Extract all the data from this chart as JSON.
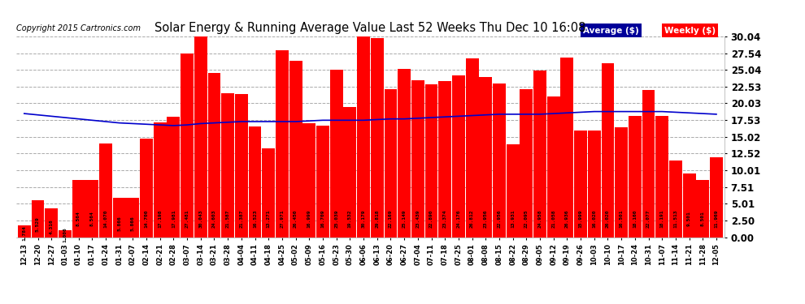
{
  "title": "Solar Energy & Running Average Value Last 52 Weeks Thu Dec 10 16:08",
  "copyright": "Copyright 2015 Cartronics.com",
  "bar_color": "#FF0000",
  "avg_line_color": "#0000CC",
  "background_color": "#FFFFFF",
  "plot_bg_color": "#FFFFFF",
  "yticks": [
    0.0,
    2.5,
    5.01,
    7.51,
    10.01,
    12.52,
    15.02,
    17.53,
    20.03,
    22.53,
    25.04,
    27.54,
    30.04
  ],
  "categories": [
    "12-13",
    "12-20",
    "12-27",
    "01-03",
    "01-10",
    "01-17",
    "01-24",
    "01-31",
    "02-07",
    "02-14",
    "02-21",
    "02-28",
    "03-07",
    "03-14",
    "03-21",
    "03-28",
    "04-04",
    "04-11",
    "04-18",
    "04-25",
    "05-02",
    "05-09",
    "05-16",
    "05-23",
    "05-30",
    "06-06",
    "06-13",
    "06-20",
    "06-27",
    "07-04",
    "07-11",
    "07-18",
    "07-25",
    "08-01",
    "08-08",
    "08-15",
    "08-22",
    "08-29",
    "09-05",
    "09-12",
    "09-19",
    "09-26",
    "10-03",
    "10-10",
    "10-17",
    "10-24",
    "10-31",
    "11-07",
    "11-14",
    "11-21",
    "11-28",
    "12-05"
  ],
  "weekly_values": [
    1.784,
    5.529,
    4.316,
    1.006,
    8.564,
    8.564,
    14.07,
    5.866,
    5.866,
    14.7,
    17.198,
    17.981,
    27.481,
    30.043,
    24.603,
    21.587,
    21.387,
    16.523,
    13.271,
    27.971,
    26.45,
    16.999,
    16.709,
    25.039,
    19.532,
    30.179,
    29.818,
    22.169,
    25.149,
    23.439,
    22.89,
    23.374,
    24.176,
    26.812,
    23.956,
    22.956,
    13.931,
    22.095,
    24.958,
    21.058,
    26.936,
    15.999,
    16.02,
    26.02,
    16.501,
    18.16,
    22.077,
    18.191,
    11.513,
    9.501,
    8.501,
    11.969
  ],
  "avg_values": [
    18.5,
    18.3,
    18.1,
    17.9,
    17.7,
    17.5,
    17.3,
    17.1,
    17.0,
    16.9,
    16.8,
    16.7,
    16.8,
    17.0,
    17.1,
    17.2,
    17.3,
    17.3,
    17.3,
    17.3,
    17.3,
    17.4,
    17.5,
    17.5,
    17.5,
    17.5,
    17.6,
    17.7,
    17.7,
    17.8,
    17.9,
    18.0,
    18.1,
    18.2,
    18.3,
    18.4,
    18.4,
    18.4,
    18.4,
    18.5,
    18.6,
    18.7,
    18.8,
    18.8,
    18.8,
    18.8,
    18.8,
    18.8,
    18.7,
    18.6,
    18.5,
    18.4
  ],
  "legend_avg_color": "#000099",
  "legend_weekly_color": "#FF0000",
  "legend_text_color": "#FFFFFF"
}
